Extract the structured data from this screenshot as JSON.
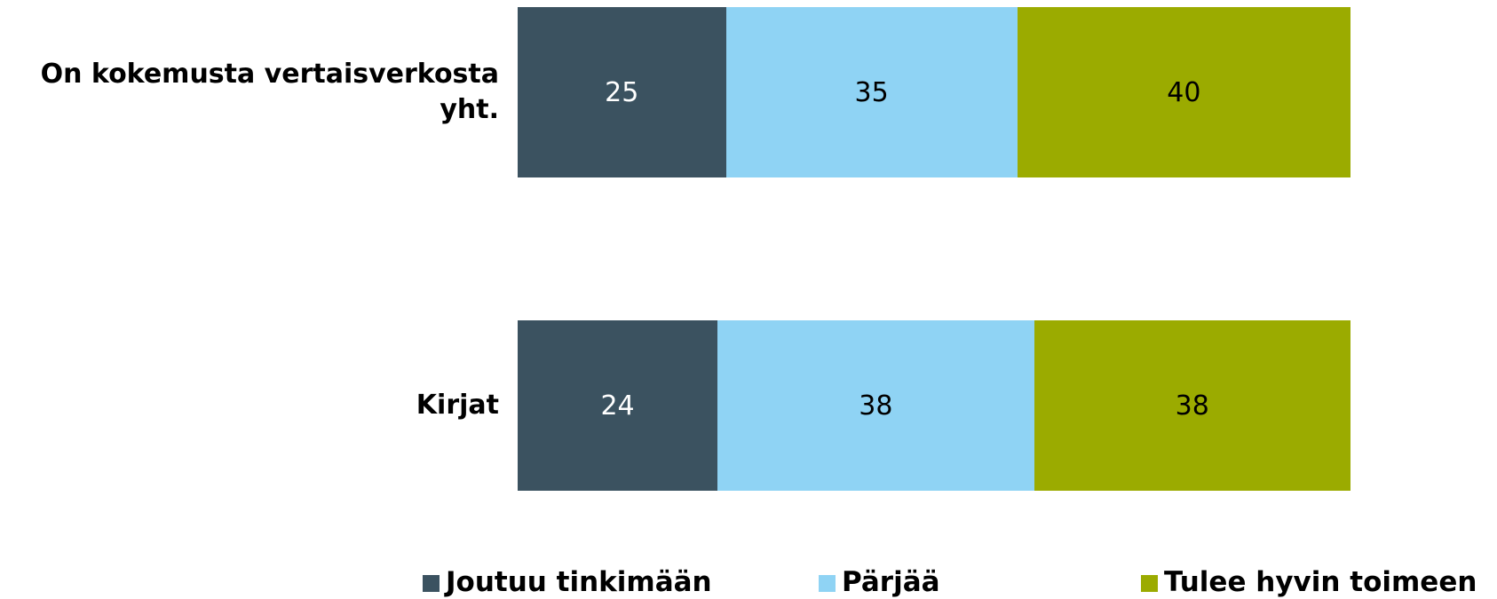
{
  "chart_data": {
    "type": "bar",
    "orientation": "horizontal",
    "stacked": true,
    "categories": [
      "On kokemusta vertaisverkosta yht.",
      "Kirjat"
    ],
    "series": [
      {
        "name": "Joutuu tinkimään",
        "color": "#3b5260",
        "values": [
          25,
          24
        ]
      },
      {
        "name": "Pärjää",
        "color": "#8fd3f4",
        "values": [
          35,
          38
        ]
      },
      {
        "name": "Tulee hyvin toimeen",
        "color": "#9bab00",
        "values": [
          40,
          38
        ]
      }
    ],
    "xlim": [
      0,
      100
    ],
    "legend": "bottom"
  }
}
